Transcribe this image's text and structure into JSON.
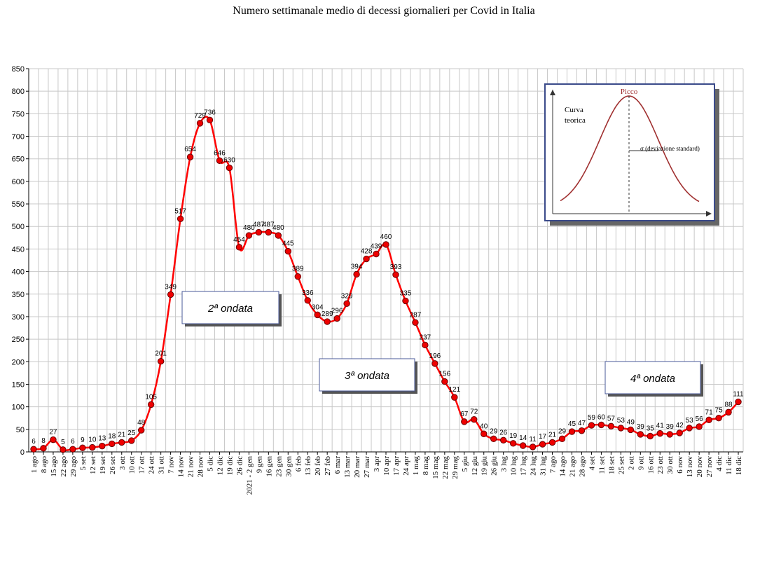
{
  "chart_data": {
    "type": "line",
    "title": "Numero settimanale medio di decessi giornalieri per Covid in Italia",
    "ylim": [
      0,
      850
    ],
    "yticks": [
      0,
      50,
      100,
      150,
      200,
      250,
      300,
      350,
      400,
      450,
      500,
      550,
      600,
      650,
      700,
      750,
      800,
      850
    ],
    "grid": true,
    "categories": [
      "1 ago",
      "8 ago",
      "15 ago",
      "22 ago",
      "29 ago",
      "5 set",
      "12 set",
      "19 set",
      "26 set",
      "3 ott",
      "10 ott",
      "17 ott",
      "24 ott",
      "31 ott",
      "7 nov",
      "14 nov",
      "21 nov",
      "28 nov",
      "5 dic",
      "12 dic",
      "19 dic",
      "26 dic",
      "2021 - 2 gen",
      "9 gen",
      "16 gen",
      "23 gen",
      "30 gen",
      "6 feb",
      "13 feb",
      "20 feb",
      "27 feb",
      "6 mar",
      "13 mar",
      "20 mar",
      "27 mar",
      "3 apr",
      "10 apr",
      "17 apr",
      "24 apr",
      "1 mag",
      "8 mag",
      "15 mag",
      "22 mag",
      "29 mag",
      "5 giu",
      "12 giu",
      "19 giu",
      "26 giu",
      "3 lug",
      "10 lug",
      "17 lug",
      "24 lug",
      "31 lug",
      "7 ago",
      "14 ago",
      "21 ago",
      "28 ago",
      "4 set",
      "11 set",
      "18 set",
      "25 set",
      "2 ott",
      "9 ott",
      "16 ott",
      "23 ott",
      "30 ott",
      "6 nov",
      "13 nov",
      "20 nov",
      "27 nov",
      "4 dic",
      "11 dic",
      "18 dic"
    ],
    "series": [
      {
        "color": "#ff0000",
        "marker_color": "#ee0000",
        "values": [
          6,
          8,
          27,
          5,
          6,
          9,
          10,
          13,
          18,
          21,
          25,
          48,
          105,
          201,
          349,
          517,
          654,
          729,
          736,
          646,
          630,
          454,
          480,
          487,
          487,
          480,
          445,
          389,
          336,
          304,
          289,
          296,
          329,
          394,
          428,
          439,
          460,
          393,
          335,
          287,
          237,
          196,
          156,
          121,
          67,
          72,
          40,
          29,
          26,
          19,
          14,
          11,
          17,
          21,
          29,
          45,
          47,
          59,
          60,
          57,
          53,
          49,
          39,
          35,
          41,
          39,
          42,
          53,
          56,
          71,
          75,
          88,
          111
        ]
      }
    ],
    "annotations": [
      {
        "text": "2ª ondata"
      },
      {
        "text": "3ª ondata"
      },
      {
        "text": "4ª ondata"
      }
    ],
    "inset": {
      "peak_label": "Picco",
      "curve_label_line1": "Curva",
      "curve_label_line2": "teorica",
      "sigma_label": "σ  (deviazione standard)"
    }
  }
}
